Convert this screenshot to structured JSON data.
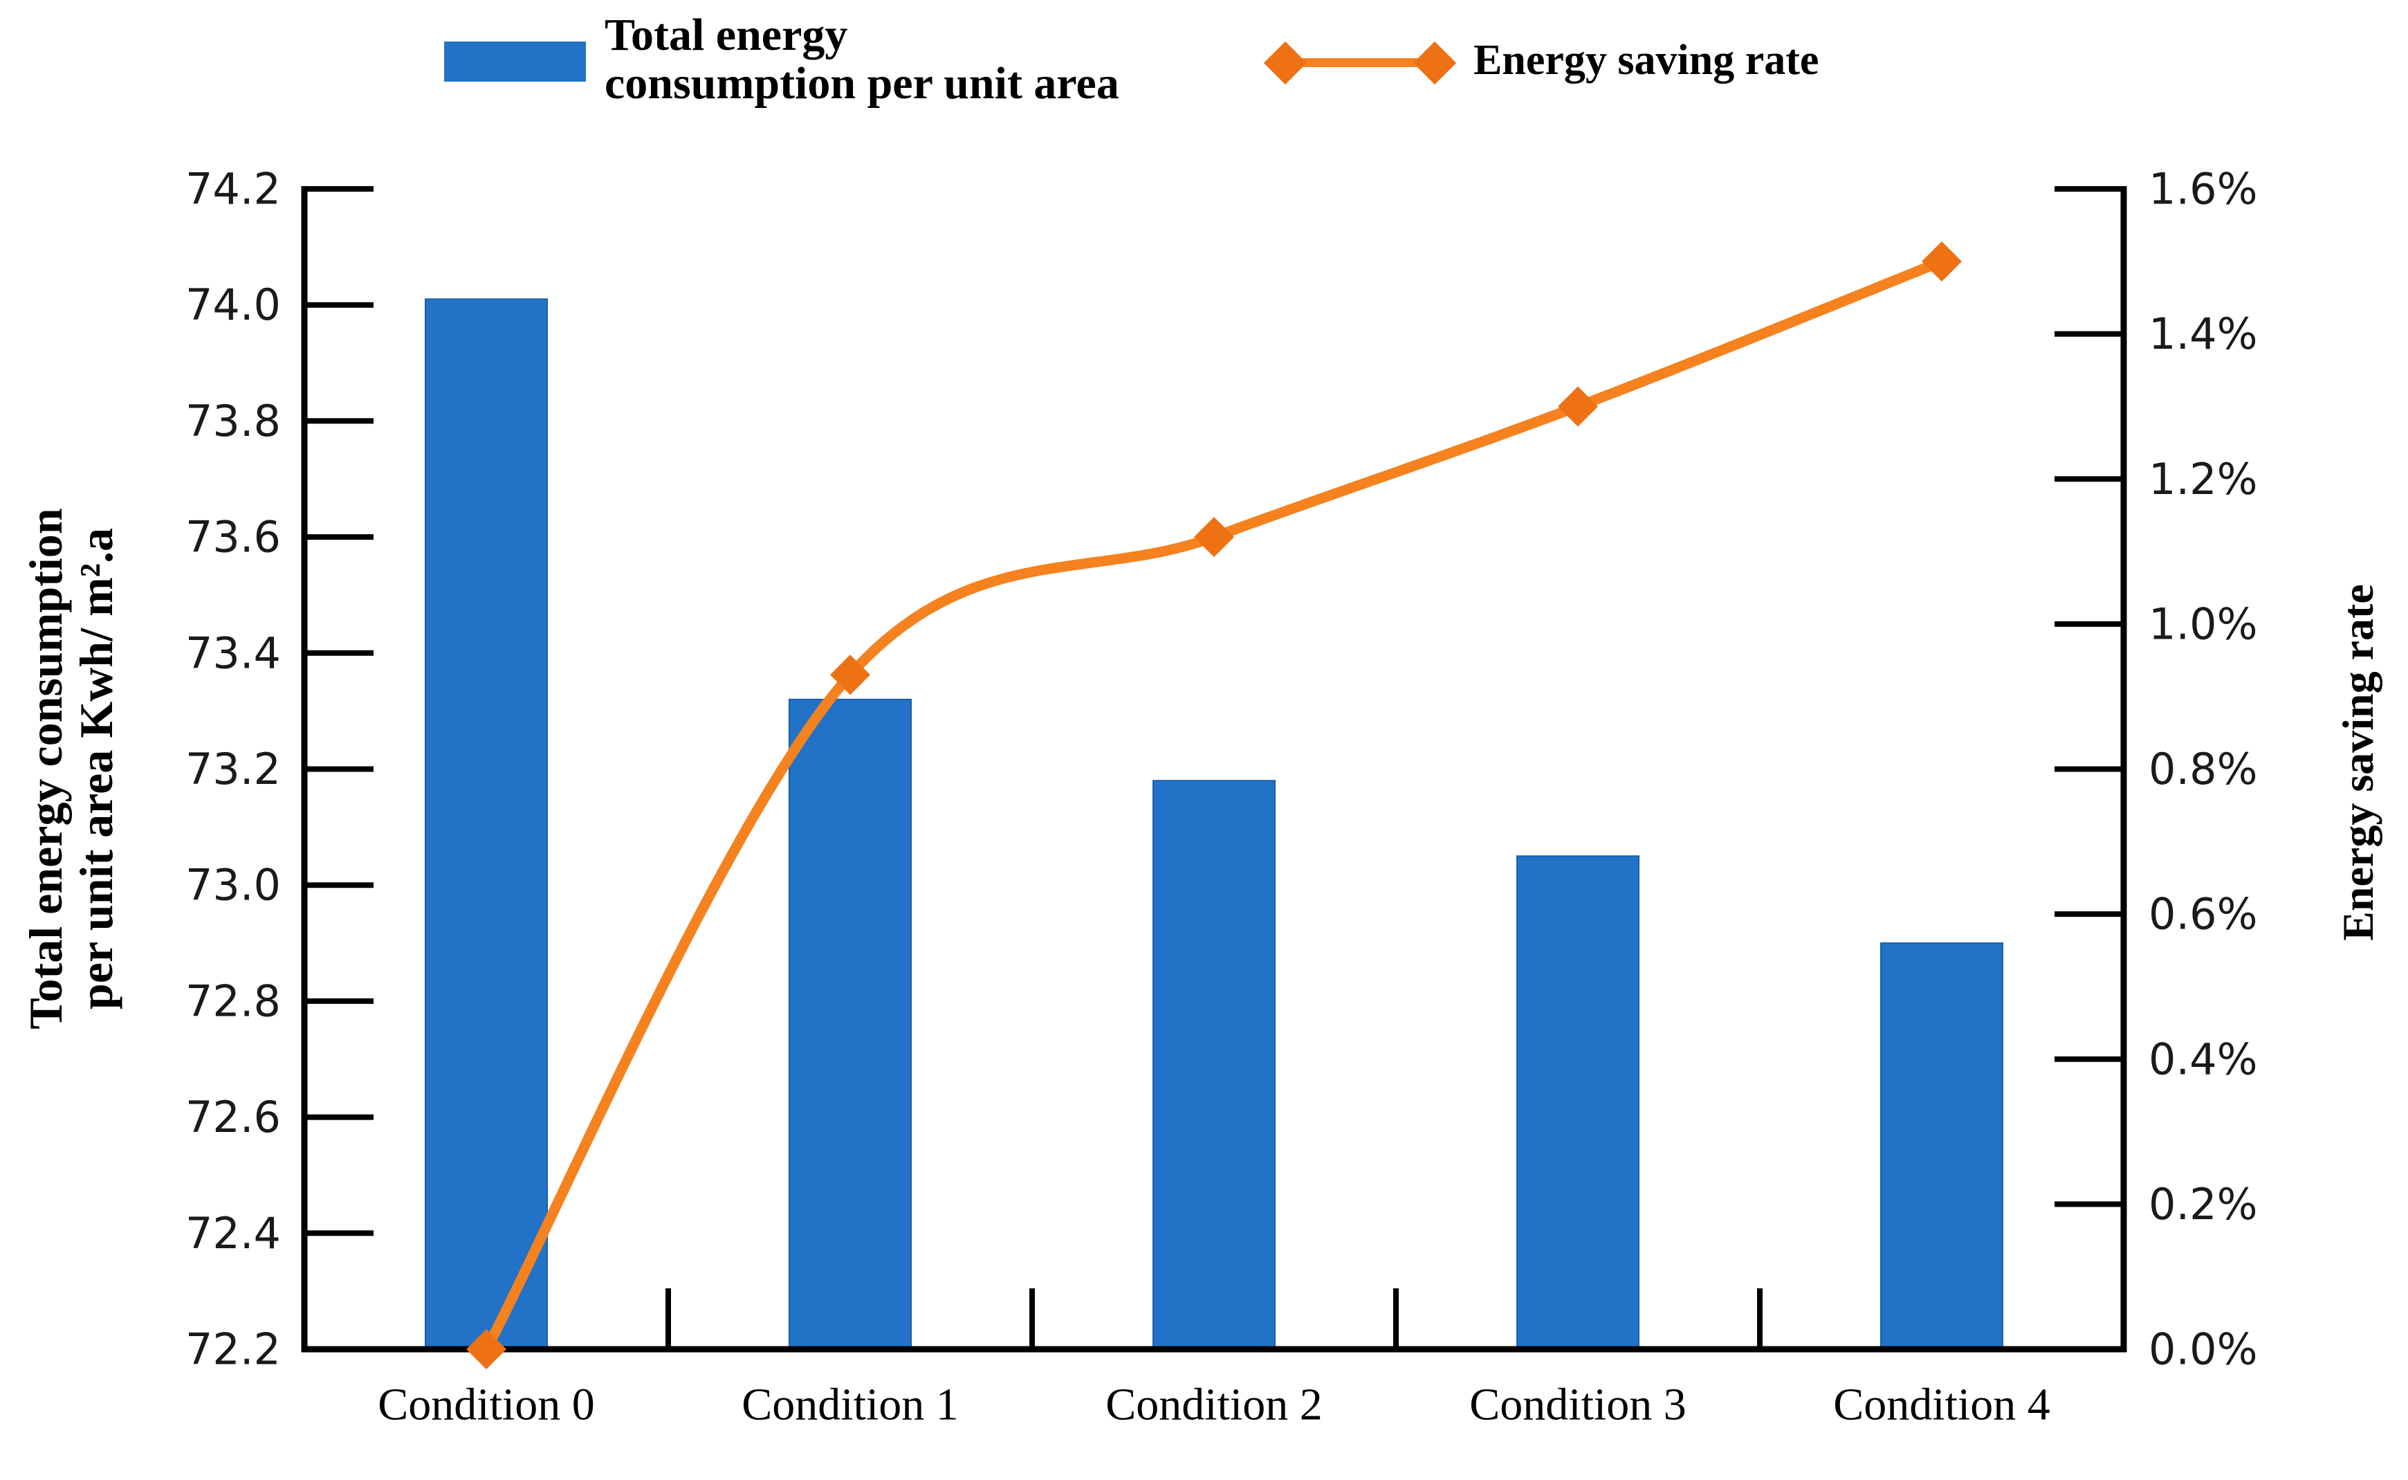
{
  "legend": {
    "bar_label_line1": "Total energy",
    "bar_label_line2": "consumption per unit area",
    "line_label": "Energy saving rate"
  },
  "left_axis": {
    "title_line1": "Total energy consumption",
    "title_line2": "per unit area Kwh/ m².a",
    "min": 72.2,
    "max": 74.2,
    "tick_labels": [
      "74.2",
      "74.0",
      "73.8",
      "73.6",
      "73.4",
      "73.2",
      "73.0",
      "72.8",
      "72.6",
      "72.4",
      "72.2"
    ]
  },
  "right_axis": {
    "title": "Energy saving rate",
    "min": 0.0,
    "max": 1.6,
    "tick_labels": [
      "1.6%",
      "1.4%",
      "1.2%",
      "1.0%",
      "0.8%",
      "0.6%",
      "0.4%",
      "0.2%",
      "0.0%"
    ]
  },
  "x_axis": {
    "categories": [
      "Condition 0",
      "Condition 1",
      "Condition 2",
      "Condition 3",
      "Condition 4"
    ]
  },
  "chart_data": {
    "type": "bar+line combo (dual axis)",
    "categories": [
      "Condition 0",
      "Condition 1",
      "Condition 2",
      "Condition 3",
      "Condition 4"
    ],
    "series": [
      {
        "name": "Total energy consumption per unit area",
        "type": "bar",
        "axis": "left",
        "unit": "Kwh/m².a",
        "values": [
          74.01,
          73.32,
          73.18,
          73.05,
          72.9
        ],
        "color": "#2273C8"
      },
      {
        "name": "Energy saving rate",
        "type": "line",
        "axis": "right",
        "unit": "%",
        "values_percent": [
          0.0,
          0.93,
          1.12,
          1.3,
          1.5
        ],
        "color": "#F5821F",
        "marker": "diamond",
        "marker_color": "#EE7113"
      }
    ],
    "left_axis": {
      "label": "Total energy consumption per unit area Kwh/m².a",
      "min": 72.2,
      "max": 74.2,
      "tick_step": 0.2
    },
    "right_axis": {
      "label": "Energy saving rate",
      "min": 0.0,
      "max": 1.6,
      "tick_step": 0.2,
      "format": "percent"
    },
    "grid": false,
    "legend_position": "top",
    "smoothed_line": true
  }
}
